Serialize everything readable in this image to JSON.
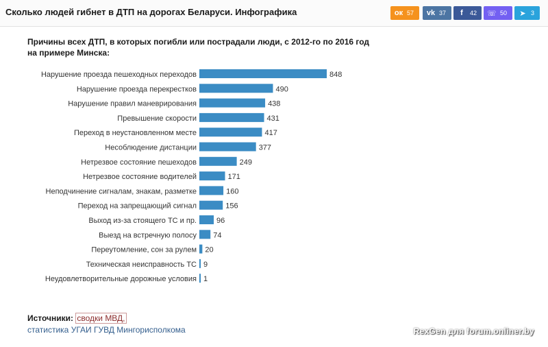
{
  "header": {
    "title": "Сколько людей гибнет в ДТП на дорогах Беларуси. Инфографика",
    "share": [
      {
        "id": "ok",
        "icon": "odnoklassniki-icon",
        "glyph": "ок",
        "count": "57",
        "color": "#f5921d"
      },
      {
        "id": "vk",
        "icon": "vk-icon",
        "glyph": "vk",
        "count": "37",
        "color": "#4c75a3"
      },
      {
        "id": "fb",
        "icon": "facebook-icon",
        "glyph": "f",
        "count": "42",
        "color": "#3b5998"
      },
      {
        "id": "vb",
        "icon": "viber-icon",
        "glyph": "☏",
        "count": "50",
        "color": "#7360f2"
      },
      {
        "id": "tg",
        "icon": "telegram-icon",
        "glyph": "➤",
        "count": "3",
        "color": "#2aa3dc"
      }
    ]
  },
  "chart_data": {
    "type": "bar",
    "orientation": "horizontal",
    "title": "Причины всех ДТП, в которых погибли или пострадали люди, с 2012-го по 2016 год на примере Минска:",
    "bar_color": "#3b8cc4",
    "categories": [
      "Нарушение проезда пешеходных переходов",
      "Нарушение проезда перекрестков",
      "Нарушение правил маневрирования",
      "Превышение скорости",
      "Переход в неустановленном месте",
      "Несоблюдение дистанции",
      "Нетрезвое состояние пешеходов",
      "Нетрезвое состояние водителей",
      "Неподчинение сигналам, знакам, разметке",
      "Переход на запрещающий сигнал",
      "Выход из-за стоящего ТС и пр.",
      "Выезд на встречную полосу",
      "Переутомление, сон за рулем",
      "Техническая неисправность ТС",
      "Неудовлетворительные дорожные условия"
    ],
    "values": [
      848,
      490,
      438,
      431,
      417,
      377,
      249,
      171,
      160,
      156,
      96,
      74,
      20,
      9,
      1
    ],
    "xlim": [
      0,
      848
    ],
    "grid": false,
    "legend": "none"
  },
  "sources": {
    "label": "Источники:",
    "link1": "сводки МВД,",
    "link2": "статистика УГАИ ГУВД Мингорисполкома"
  },
  "watermark": "RexGen для forum.onliner.by"
}
